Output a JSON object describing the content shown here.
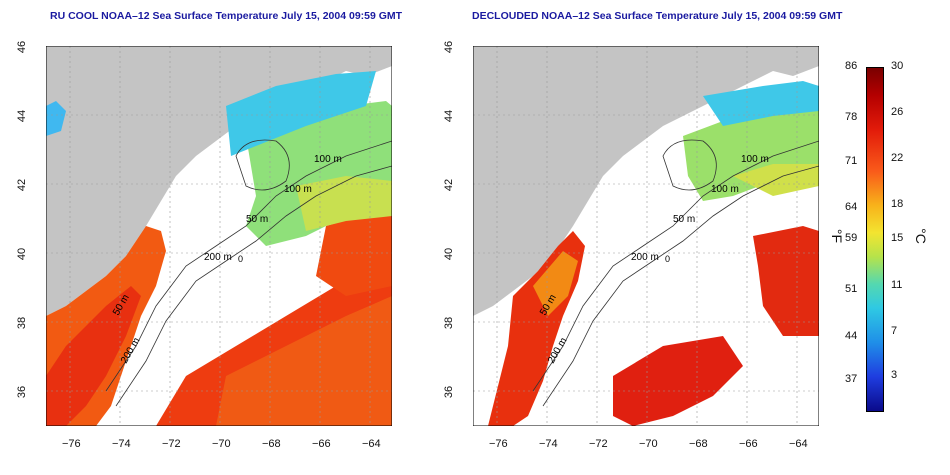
{
  "panels": [
    {
      "title": "RU COOL NOAA–12 Sea Surface Temperature July 15, 2004 09:59 GMT"
    },
    {
      "title": "DECLOUDED NOAA–12 Sea Surface Temperature July 15, 2004 09:59 GMT"
    }
  ],
  "axes": {
    "lon_ticks": [
      "−76",
      "−74",
      "−72",
      "−70",
      "−68",
      "−66",
      "−64"
    ],
    "lat_ticks": [
      "46",
      "44",
      "42",
      "40",
      "38",
      "36"
    ],
    "lon_range": [
      -77,
      -63
    ],
    "lat_range": [
      35,
      46
    ]
  },
  "contours": {
    "labels": [
      "100 m",
      "100 m",
      "50 m",
      "200 m",
      "50 m",
      "200 m",
      "0"
    ]
  },
  "colorbar": {
    "fahrenheit_ticks": [
      "86",
      "78",
      "71",
      "64",
      "59",
      "51",
      "44",
      "37"
    ],
    "celsius_ticks": [
      "30",
      "26",
      "22",
      "18",
      "15",
      "11",
      "7",
      "3"
    ],
    "unit_f": "°F",
    "unit_c": "°C"
  },
  "colors": {
    "land": "#c4c4c4",
    "cloud": "#ffffff",
    "title": "#1a1aa0",
    "warm": "#f04010",
    "hot": "#d01010",
    "mild": "#9be06a",
    "cool": "#30c8e0"
  }
}
